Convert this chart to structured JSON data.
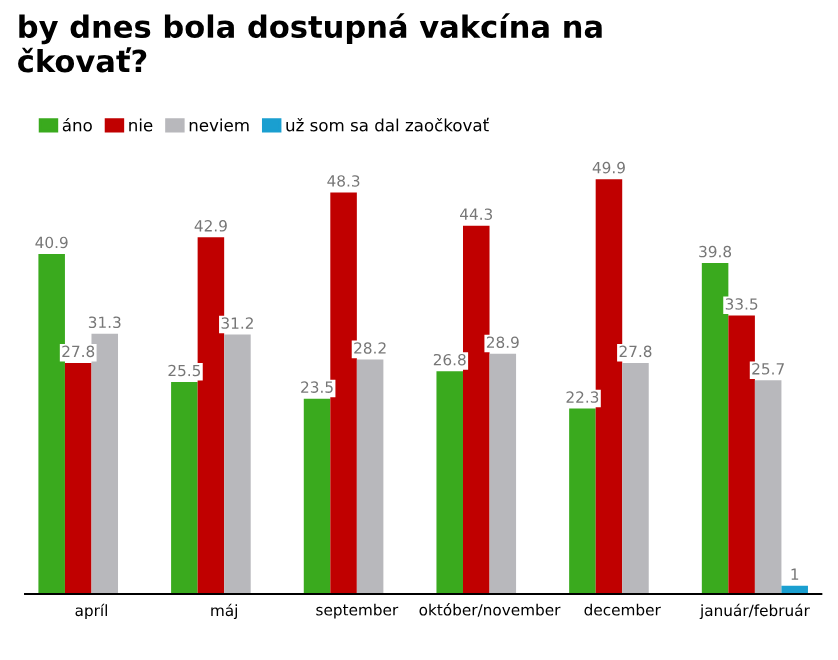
{
  "chart_data": {
    "type": "bar",
    "title": "by dnes bola dostupná vakcína na\nčkovať?",
    "categories": [
      "apríl",
      "máj",
      "september",
      "október/november",
      "december",
      "január/február"
    ],
    "series": [
      {
        "name": "áno",
        "color": "#3aaa1e",
        "values": [
          40.9,
          25.5,
          23.5,
          26.8,
          22.3,
          39.8
        ],
        "value_labels": [
          "40.9",
          "25.5",
          "23.5",
          "26.8",
          "22.3",
          "39.8"
        ]
      },
      {
        "name": "nie",
        "color": "#c00000",
        "values": [
          27.8,
          42.9,
          48.3,
          44.3,
          49.9,
          33.5
        ],
        "value_labels": [
          "27.8",
          "42.9",
          "48.3",
          "44.3",
          "49.9",
          "33.5"
        ]
      },
      {
        "name": "neviem",
        "color": "#b8b8bc",
        "values": [
          31.3,
          31.2,
          28.2,
          28.9,
          27.8,
          25.7
        ],
        "value_labels": [
          "31.3",
          "31.2",
          "28.2",
          "28.9",
          "27.8",
          "25.7"
        ]
      },
      {
        "name": "už som sa dal zaočkovať",
        "color": "#1a9fd0",
        "values": [
          null,
          null,
          null,
          null,
          null,
          1.0
        ],
        "value_labels": [
          null,
          null,
          null,
          null,
          null,
          "1"
        ]
      }
    ],
    "legend": "top left",
    "grid": false
  }
}
